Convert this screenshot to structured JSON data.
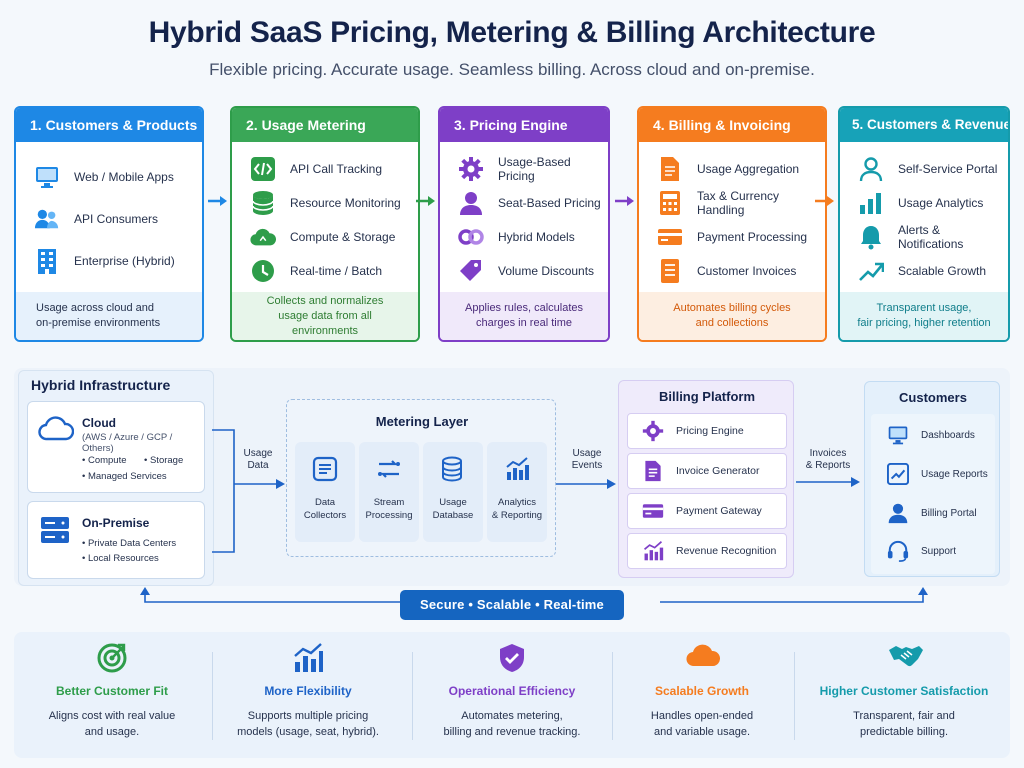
{
  "title": "Hybrid SaaS Pricing, Metering & Billing Architecture",
  "subtitle": "Flexible pricing. Accurate usage. Seamless billing. Across cloud and on-premise.",
  "colors": {
    "blue": "#1e88e5",
    "green": "#2e9d4a",
    "purple": "#7e3fc7",
    "orange": "#f57c1f",
    "teal": "#159bab",
    "pill": "#1565c0"
  },
  "cards": [
    {
      "title": "1. Customers & Products",
      "items": [
        "Web / Mobile Apps",
        "API Consumers",
        "Enterprise (Hybrid)"
      ],
      "footer_line1": "Usage across cloud and",
      "footer_line2": "on-premise environments",
      "icons": [
        "monitor-icon",
        "users-icon",
        "building-icon"
      ]
    },
    {
      "title": "2. Usage Metering",
      "items": [
        "API Call Tracking",
        "Resource Monitoring",
        "Compute & Storage",
        "Real-time / Batch"
      ],
      "footer_line1": "Collects and normalizes",
      "footer_line2": "usage data from all environments",
      "icons": [
        "code-icon",
        "database-icon",
        "cloud-icon",
        "clock-icon"
      ]
    },
    {
      "title": "3. Pricing Engine",
      "items": [
        "Usage-Based Pricing",
        "Seat-Based Pricing",
        "Hybrid Models",
        "Volume Discounts"
      ],
      "footer_line1": "Applies rules, calculates",
      "footer_line2": "charges in real time",
      "icons": [
        "gear-icon",
        "user-icon",
        "link-icon",
        "tag-icon"
      ]
    },
    {
      "title": "4. Billing & Invoicing",
      "items": [
        "Usage Aggregation",
        "Tax & Currency Handling",
        "Payment Processing",
        "Customer Invoices"
      ],
      "footer_line1": "Automates billing cycles",
      "footer_line2": "and collections",
      "icons": [
        "document-icon",
        "calculator-icon",
        "card-icon",
        "invoice-icon"
      ]
    },
    {
      "title": "5. Customers & Revenue",
      "items": [
        "Self-Service Portal",
        "Usage Analytics",
        "Alerts & Notifications",
        "Scalable Growth"
      ],
      "footer_line1": "Transparent usage,",
      "footer_line2": "fair pricing, higher retention",
      "icons": [
        "person-icon",
        "bar-chart-icon",
        "bell-icon",
        "trend-up-icon"
      ]
    }
  ],
  "infra": {
    "title": "Hybrid Infrastructure",
    "cloud": {
      "title": "Cloud",
      "sub": "(AWS / Azure / GCP / Others)",
      "items": [
        "• Compute",
        "• Storage",
        "• Managed Services"
      ]
    },
    "onprem": {
      "title": "On-Premise",
      "items": [
        "• Private Data Centers",
        "• Local Resources"
      ]
    }
  },
  "flow_labels": {
    "usage_data_1": "Usage",
    "usage_data_2": "Data",
    "usage_events_1": "Usage",
    "usage_events_2": "Events",
    "invoices_1": "Invoices",
    "invoices_2": "& Reports"
  },
  "metering": {
    "title": "Metering Layer",
    "tiles": [
      {
        "l1": "Data",
        "l2": "Collectors"
      },
      {
        "l1": "Stream",
        "l2": "Processing"
      },
      {
        "l1": "Usage",
        "l2": "Database"
      },
      {
        "l1": "Analytics",
        "l2": "& Reporting"
      }
    ]
  },
  "billing_platform": {
    "title": "Billing Platform",
    "rows": [
      "Pricing Engine",
      "Invoice Generator",
      "Payment Gateway",
      "Revenue Recognition"
    ]
  },
  "customers": {
    "title": "Customers",
    "rows": [
      "Dashboards",
      "Usage Reports",
      "Billing Portal",
      "Support"
    ]
  },
  "pill": "Secure • Scalable • Real-time",
  "benefits": [
    {
      "title": "Better Customer Fit",
      "d1": "Aligns cost with real value",
      "d2": "and usage.",
      "color": "#2e9d4a"
    },
    {
      "title": "More Flexibility",
      "d1": "Supports multiple pricing",
      "d2": "models (usage, seat, hybrid).",
      "color": "#1e63c7"
    },
    {
      "title": "Operational Efficiency",
      "d1": "Automates metering,",
      "d2": "billing and revenue tracking.",
      "color": "#7e3fc7"
    },
    {
      "title": "Scalable Growth",
      "d1": "Handles open-ended",
      "d2": "and variable usage.",
      "color": "#f57c1f"
    },
    {
      "title": "Higher Customer Satisfaction",
      "d1": "Transparent, fair and",
      "d2": "predictable billing.",
      "color": "#159bab"
    }
  ]
}
